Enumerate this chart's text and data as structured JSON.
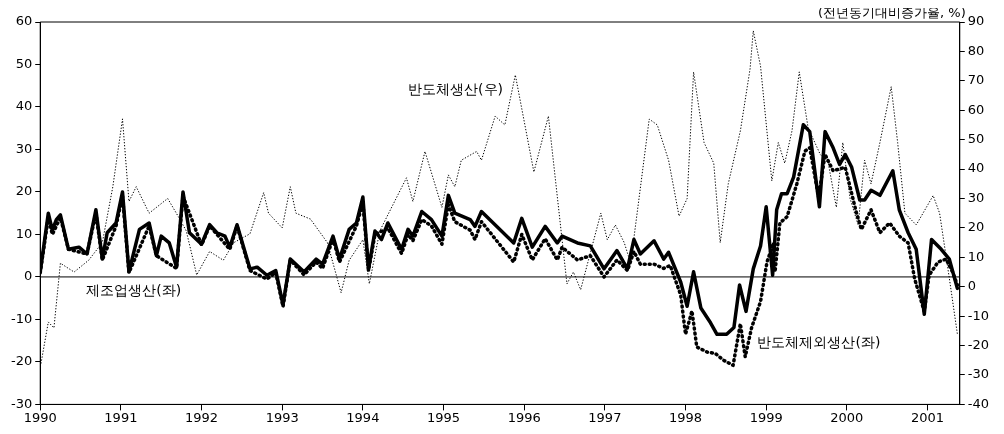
{
  "chart_data": {
    "type": "line",
    "y2label": "(전년동기대비증가율, %)",
    "xlim": [
      1990,
      2001.4
    ],
    "xticks": [
      1990,
      1991,
      1992,
      1993,
      1994,
      1995,
      1996,
      1997,
      1998,
      1999,
      2000,
      2001
    ],
    "ylim": [
      -30,
      60
    ],
    "yticks": [
      -30,
      -20,
      -10,
      0,
      10,
      20,
      30,
      40,
      50,
      60
    ],
    "y2lim": [
      -40,
      90
    ],
    "y2ticks": [
      -40,
      -30,
      -20,
      -10,
      0,
      10,
      20,
      30,
      40,
      50,
      60,
      70,
      80,
      90
    ],
    "grid": false,
    "legend": false,
    "marker": "none",
    "ref_lines": [
      {
        "axis": "y",
        "value": 0,
        "color": "#000000"
      }
    ],
    "series": [
      {
        "name": "제조업생산(좌)",
        "color": "#000000",
        "line_style": "solid",
        "x": [
          1990.0,
          1990.1,
          1990.15,
          1990.2,
          1990.25,
          1990.35,
          1990.48,
          1990.58,
          1990.69,
          1990.77,
          1990.83,
          1990.94,
          1991.02,
          1991.1,
          1991.23,
          1991.35,
          1991.44,
          1991.5,
          1991.6,
          1991.69,
          1991.77,
          1991.85,
          1992.0,
          1992.1,
          1992.19,
          1992.29,
          1992.35,
          1992.44,
          1992.6,
          1992.69,
          1992.81,
          1992.92,
          1993.01,
          1993.1,
          1993.27,
          1993.42,
          1993.5,
          1993.63,
          1993.71,
          1993.83,
          1993.92,
          1994.0,
          1994.07,
          1994.15,
          1994.23,
          1994.31,
          1994.48,
          1994.56,
          1994.62,
          1994.73,
          1994.85,
          1994.98,
          1995.06,
          1995.14,
          1995.33,
          1995.39,
          1995.47,
          1995.87,
          1995.97,
          1996.1,
          1996.26,
          1996.41,
          1996.47,
          1996.66,
          1996.82,
          1996.99,
          1997.15,
          1997.28,
          1997.36,
          1997.44,
          1997.61,
          1997.73,
          1997.79,
          1997.94,
          1998.02,
          1998.1,
          1998.19,
          1998.31,
          1998.39,
          1998.51,
          1998.6,
          1998.67,
          1998.75,
          1998.84,
          1998.93,
          1999.0,
          1999.08,
          1999.13,
          1999.19,
          1999.26,
          1999.34,
          1999.46,
          1999.54,
          1999.66,
          1999.73,
          1999.83,
          1999.91,
          1999.98,
          2000.06,
          2000.16,
          2000.22,
          2000.3,
          2000.41,
          2000.57,
          2000.65,
          2000.76,
          2000.86,
          2000.96,
          2001.05,
          2001.17,
          2001.27,
          2001.37
        ],
        "values": [
          1.2,
          15,
          11,
          13.5,
          14.6,
          6.5,
          7,
          5.4,
          15.8,
          4.2,
          10.4,
          12.7,
          20,
          1.2,
          11.2,
          12.7,
          5,
          9.6,
          8,
          2.3,
          20,
          10.4,
          7.7,
          12.3,
          10.4,
          9.6,
          7,
          12.3,
          1.9,
          2.3,
          0.4,
          1.5,
          -6.5,
          4.2,
          1.2,
          4.2,
          3,
          9.6,
          4.2,
          11.2,
          12.7,
          18.8,
          1.9,
          10.8,
          8.8,
          12.7,
          6.5,
          11.2,
          9.6,
          15.4,
          13.5,
          9.6,
          19.2,
          15,
          13.5,
          11.9,
          15.4,
          8,
          13.8,
          7,
          11.9,
          8,
          9.6,
          8,
          7.3,
          1.9,
          6.2,
          1.9,
          8.8,
          5.4,
          8.5,
          4.2,
          5.8,
          -1.2,
          -6.9,
          1.2,
          -7.3,
          -10.8,
          -13.5,
          -13.5,
          -11.9,
          -1.9,
          -8.1,
          1.9,
          7.3,
          16.5,
          0.4,
          15.8,
          19.6,
          19.6,
          23.5,
          35.8,
          34.2,
          16.5,
          34.2,
          30.4,
          26.5,
          28.8,
          25.8,
          18.1,
          18.1,
          20.4,
          19.2,
          25,
          15.8,
          10.4,
          6.5,
          -8.8,
          8.8,
          6.5,
          4.2,
          -2.7
        ]
      },
      {
        "name": "반도체제외생산(좌)",
        "color": "#000000",
        "line_style": "dashed",
        "x": [
          1990.0,
          1990.1,
          1990.15,
          1990.25,
          1990.35,
          1990.58,
          1990.69,
          1990.77,
          1990.94,
          1991.02,
          1991.1,
          1991.35,
          1991.44,
          1991.69,
          1991.77,
          1992.0,
          1992.1,
          1992.35,
          1992.44,
          1992.6,
          1992.81,
          1992.92,
          1993.01,
          1993.1,
          1993.27,
          1993.42,
          1993.5,
          1993.63,
          1993.71,
          1993.92,
          1994.0,
          1994.07,
          1994.15,
          1994.31,
          1994.48,
          1994.56,
          1994.62,
          1994.73,
          1994.85,
          1994.98,
          1995.06,
          1995.14,
          1995.33,
          1995.39,
          1995.47,
          1995.87,
          1995.97,
          1996.1,
          1996.26,
          1996.41,
          1996.47,
          1996.66,
          1996.82,
          1996.99,
          1997.15,
          1997.28,
          1997.36,
          1997.44,
          1997.61,
          1997.73,
          1997.81,
          1997.94,
          1998.0,
          1998.08,
          1998.14,
          1998.27,
          1998.37,
          1998.47,
          1998.59,
          1998.68,
          1998.74,
          1998.82,
          1998.93,
          1999.01,
          1999.09,
          1999.11,
          1999.17,
          1999.26,
          1999.38,
          1999.48,
          1999.54,
          1999.65,
          1999.73,
          1999.83,
          1999.98,
          2000.12,
          2000.18,
          2000.3,
          2000.41,
          2000.53,
          2000.65,
          2000.76,
          2000.84,
          2000.96,
          2001.02,
          2001.13,
          2001.23,
          2001.31,
          2001.37
        ],
        "values": [
          1,
          14,
          10,
          14,
          6.5,
          5.4,
          15,
          4,
          12,
          19,
          1,
          12,
          5,
          2,
          19,
          7.5,
          12,
          6.5,
          12,
          1.5,
          -0.5,
          1,
          -7,
          4,
          0.5,
          3.5,
          2,
          9,
          3.5,
          12,
          17.5,
          1.5,
          10,
          11.5,
          5.5,
          10,
          8.5,
          13.5,
          12,
          7.7,
          17,
          13,
          11,
          8.8,
          13,
          3.5,
          10,
          4,
          9,
          4,
          7,
          4,
          5,
          0,
          4,
          1.5,
          6,
          3,
          3,
          2,
          2.7,
          -4.2,
          -13.5,
          -8,
          -16.5,
          -17.7,
          -18,
          -19.6,
          -20.8,
          -11,
          -18.8,
          -11.9,
          -5.8,
          3.5,
          8,
          1.2,
          12.7,
          14.2,
          21.9,
          29.6,
          30.4,
          18.8,
          28.8,
          25,
          25.8,
          15,
          11.2,
          15.8,
          10.4,
          12.7,
          9.6,
          8,
          -0.4,
          -8.1,
          0.4,
          3.5,
          4.2,
          1.2,
          -1.9
        ]
      },
      {
        "name": "반도체생산(우)",
        "color": "#000000",
        "line_style": "dotted",
        "axis": "y2",
        "x": [
          1990.01,
          1990.1,
          1990.17,
          1990.25,
          1990.42,
          1990.6,
          1990.77,
          1990.9,
          1991.02,
          1991.1,
          1991.19,
          1991.35,
          1991.58,
          1991.73,
          1991.81,
          1991.94,
          1992.1,
          1992.27,
          1992.4,
          1992.6,
          1992.77,
          1992.83,
          1993.0,
          1993.1,
          1993.17,
          1993.35,
          1993.56,
          1993.73,
          1993.83,
          1994.0,
          1994.08,
          1994.21,
          1994.54,
          1994.62,
          1994.77,
          1994.98,
          1995.06,
          1995.14,
          1995.22,
          1995.41,
          1995.47,
          1995.64,
          1995.76,
          1995.89,
          1996.12,
          1996.3,
          1996.53,
          1996.61,
          1996.7,
          1996.95,
          1997.03,
          1997.13,
          1997.24,
          1997.32,
          1997.55,
          1997.65,
          1997.79,
          1997.92,
          1998.02,
          1998.1,
          1998.23,
          1998.35,
          1998.43,
          1998.53,
          1998.68,
          1998.8,
          1998.84,
          1998.93,
          1999.07,
          1999.15,
          1999.23,
          1999.32,
          1999.41,
          1999.52,
          1999.67,
          1999.77,
          1999.87,
          1999.95,
          2000.04,
          2000.14,
          2000.22,
          2000.3,
          2000.41,
          2000.55,
          2000.63,
          2000.72,
          2000.86,
          2001.07,
          2001.15,
          2001.27,
          2001.37
        ],
        "values": [
          -26,
          -12,
          -14,
          8,
          5,
          9,
          15,
          34,
          57,
          29,
          34,
          25,
          30,
          23,
          19,
          4,
          12,
          9,
          15,
          18,
          32,
          25,
          20,
          34,
          25,
          23,
          15,
          -2,
          9,
          16,
          1,
          19,
          37,
          29,
          46,
          27,
          38,
          34,
          43,
          46,
          43,
          58,
          55,
          72,
          39,
          58,
          1,
          5,
          -1,
          25,
          16,
          21,
          15,
          8,
          57,
          55,
          43,
          24,
          30,
          73,
          49,
          42,
          15,
          35,
          53,
          74,
          87,
          75,
          36,
          49,
          42,
          53,
          73,
          54,
          45,
          42,
          27,
          49,
          30,
          21,
          43,
          35,
          49,
          68,
          49,
          25,
          21,
          31,
          25,
          3,
          -16
        ]
      }
    ]
  }
}
